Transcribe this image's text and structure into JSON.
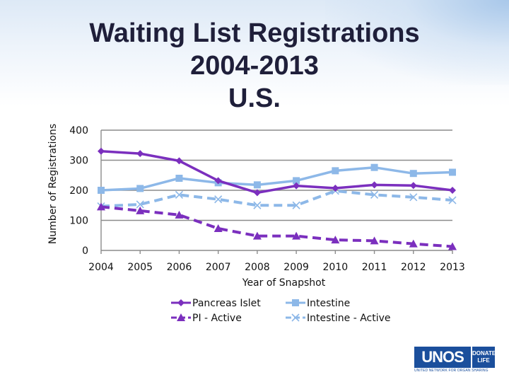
{
  "chart_data": {
    "type": "line",
    "title_lines": [
      "Waiting List Registrations",
      "2004-2013",
      "U.S."
    ],
    "xlabel": "Year of Snapshot",
    "ylabel": "Number of Registrations",
    "categories": [
      "2004",
      "2005",
      "2006",
      "2007",
      "2008",
      "2009",
      "2010",
      "2011",
      "2012",
      "2013"
    ],
    "ylim": [
      0,
      400
    ],
    "yticks": [
      0,
      100,
      200,
      300,
      400
    ],
    "grid": true,
    "legend_position": "bottom",
    "series": [
      {
        "name": "Pancreas Islet",
        "color": "#7b2fbe",
        "marker": "diamond",
        "dash": false,
        "values": [
          330,
          322,
          298,
          232,
          192,
          215,
          207,
          218,
          216,
          200
        ]
      },
      {
        "name": "Intestine",
        "color": "#8db8e8",
        "marker": "square",
        "dash": false,
        "values": [
          200,
          206,
          240,
          225,
          218,
          232,
          265,
          276,
          256,
          260
        ]
      },
      {
        "name": "PI - Active",
        "color": "#7b2fbe",
        "marker": "triangle",
        "dash": true,
        "values": [
          145,
          132,
          118,
          73,
          48,
          48,
          35,
          32,
          22,
          13
        ]
      },
      {
        "name": "Intestine - Active",
        "color": "#8db8e8",
        "marker": "x",
        "dash": true,
        "values": [
          147,
          153,
          185,
          170,
          150,
          150,
          198,
          185,
          177,
          167
        ]
      }
    ]
  },
  "logo": {
    "brand": "UNOS",
    "badge": "DONATE LIFE",
    "tagline": "UNITED NETWORK FOR ORGAN SHARING"
  }
}
